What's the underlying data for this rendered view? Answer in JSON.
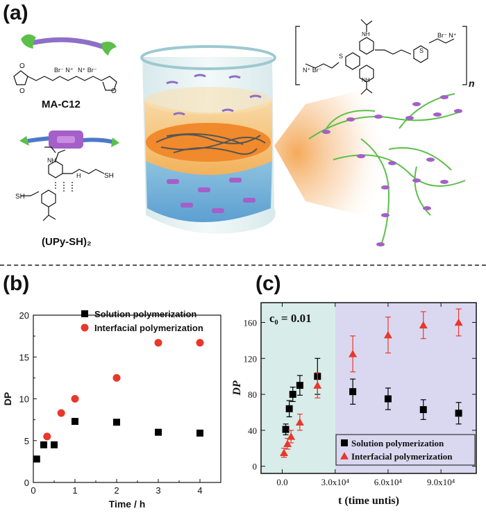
{
  "panel_a": {
    "label": "(a)",
    "monomer1_name": "MA-C12",
    "monomer2_name": "(UPy-SH)₂",
    "polymer_repeat": "n",
    "colors": {
      "purple": "#9b59b6",
      "green": "#5cbf4a",
      "orange": "#f39a3c",
      "blue": "#4e8fcf"
    }
  },
  "panel_b": {
    "label": "(b)"
  },
  "panel_c": {
    "label": "(c)"
  },
  "chart_data": [
    {
      "type": "scatter",
      "xlabel": "Time / h",
      "ylabel": "DP",
      "xlim": [
        0,
        4.5
      ],
      "ylim": [
        0,
        20
      ],
      "xticks": [
        "0",
        "1",
        "2",
        "3",
        "4"
      ],
      "yticks": [
        "0",
        "5",
        "10",
        "15",
        "20"
      ],
      "legend_position": "top-right",
      "series": [
        {
          "name": "Solution polymerization",
          "marker": "square",
          "color": "#000000",
          "x": [
            0.08,
            0.25,
            0.5,
            1,
            2,
            3,
            4
          ],
          "y": [
            2.8,
            4.5,
            4.5,
            7.3,
            7.2,
            6.0,
            5.9
          ]
        },
        {
          "name": "Interfacial polymerization",
          "marker": "circle",
          "color": "#e8382b",
          "x": [
            0.33,
            0.67,
            1,
            2,
            3,
            4
          ],
          "y": [
            5.5,
            8.3,
            10.0,
            12.5,
            16.7,
            16.7
          ]
        }
      ]
    },
    {
      "type": "scatter",
      "xlabel": "t (time untis)",
      "ylabel": "DP",
      "annotation": "c₀ = 0.01",
      "xlim": [
        -12000,
        110000
      ],
      "ylim": [
        -8,
        182
      ],
      "xticks": [
        "0.0",
        "3.0x10⁴",
        "6.0x10⁴",
        "9.0x10⁴"
      ],
      "yticks": [
        "0",
        "40",
        "80",
        "120",
        "160"
      ],
      "shaded_regions": [
        {
          "from": -12000,
          "to": 30000,
          "color": "#d8ecea"
        },
        {
          "from": 30000,
          "to": 110000,
          "color": "#dad8f0"
        }
      ],
      "legend_position": "bottom-right",
      "series": [
        {
          "name": "Solution polymerization",
          "marker": "square",
          "color": "#000000",
          "x": [
            2000,
            4000,
            6000,
            10000,
            20000,
            40000,
            60000,
            80000,
            100000
          ],
          "y": [
            41,
            64,
            80,
            90,
            100,
            83,
            75,
            63,
            59
          ],
          "err": [
            6,
            9,
            8,
            11,
            20,
            14,
            12,
            11,
            12
          ]
        },
        {
          "name": "Interfacial polymerization",
          "marker": "triangle",
          "color": "#e8382b",
          "x": [
            1000,
            3000,
            5000,
            10000,
            20000,
            40000,
            60000,
            80000,
            100000
          ],
          "y": [
            15,
            25,
            33,
            49,
            90,
            125,
            146,
            157,
            160
          ],
          "err": [
            5,
            6,
            7,
            9,
            14,
            20,
            20,
            15,
            15
          ]
        }
      ]
    }
  ]
}
